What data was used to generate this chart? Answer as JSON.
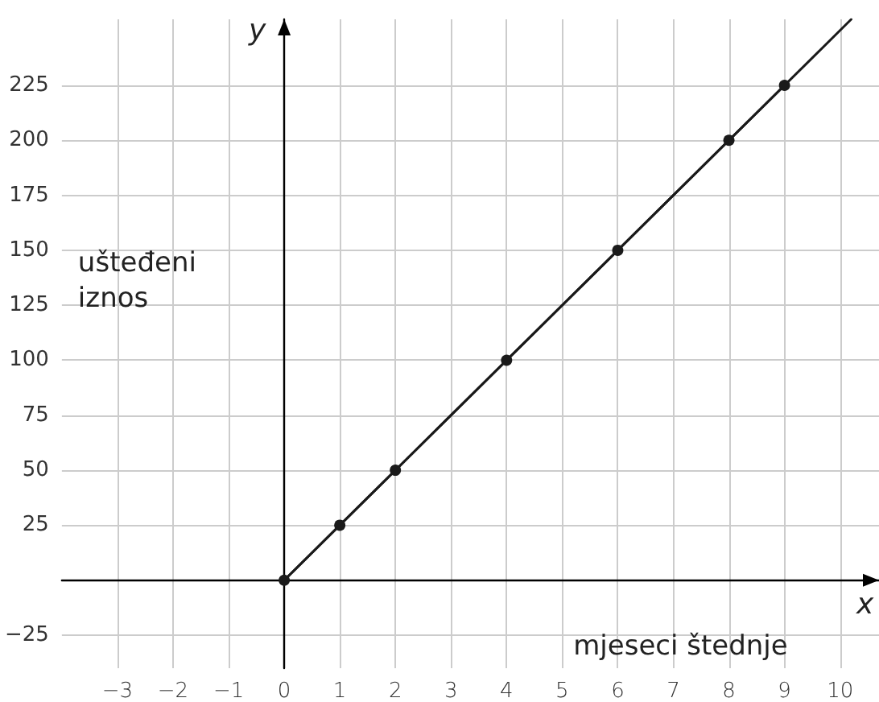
{
  "chart_data": {
    "type": "line",
    "xlabel": "mjeseci štednje",
    "ylabel": "ušteđeni iznos",
    "annotations": [
      "x",
      "y"
    ],
    "x": [
      0,
      1,
      2,
      4,
      6,
      8,
      9
    ],
    "series": [
      {
        "color": "#1a1a1a",
        "values": [
          0,
          25,
          50,
          100,
          150,
          200,
          225
        ],
        "marker": "circle"
      },
      {
        "type": "line",
        "color": "#1a1a1a",
        "x": [
          0,
          10.2
        ],
        "values": [
          0,
          255
        ],
        "marker": "none"
      }
    ],
    "xlim": [
      -4,
      10.7
    ],
    "ylim": [
      -40,
      255
    ],
    "xticks": [
      -3,
      -2,
      -1,
      0,
      1,
      2,
      3,
      4,
      5,
      6,
      7,
      8,
      9,
      10
    ],
    "yticks": [
      -25,
      {
        "value": 0,
        "label": null
      },
      25,
      50,
      75,
      100,
      125,
      150,
      175,
      200,
      225
    ],
    "grid": true,
    "line_style": "solid"
  }
}
